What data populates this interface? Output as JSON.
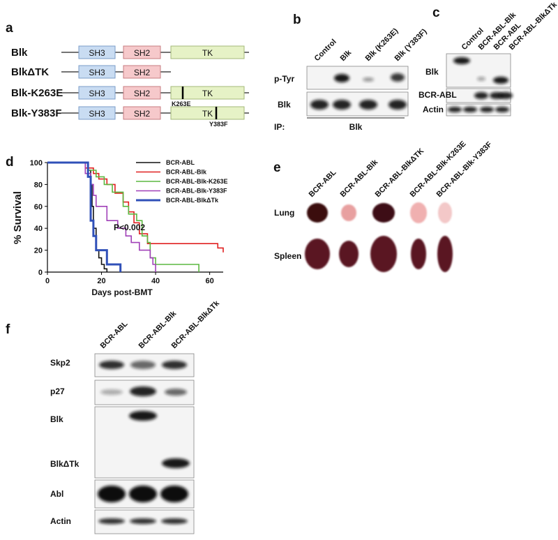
{
  "panel_labels": [
    "a",
    "b",
    "c",
    "d",
    "e",
    "f"
  ],
  "panel_a": {
    "constructs": [
      "Blk",
      "BlkΔTK",
      "Blk-K263E",
      "Blk-Y383F"
    ],
    "domains": [
      "SH3",
      "SH2",
      "TK"
    ],
    "mutations": [
      "K263E",
      "Y383F"
    ]
  },
  "panel_b": {
    "lanes": [
      "Control",
      "Blk",
      "Blk (K263E)",
      "Blk (Y383F)"
    ],
    "rows": [
      "p-Tyr",
      "Blk"
    ],
    "ip_label": "IP:",
    "ip_antibody": "Blk"
  },
  "panel_c": {
    "lanes": [
      "Control",
      "BCR-ABL-Blk",
      "BCR-ABL",
      "BCR-ABL-BlkΔTk"
    ],
    "rows": [
      "Blk",
      "BCR-ABL",
      "Actin"
    ]
  },
  "chart_data": {
    "type": "line",
    "step": true,
    "x_label": "Days post-BMT",
    "y_label": "% Survival",
    "annotation": "P<0.002",
    "xlim": [
      0,
      65
    ],
    "ylim": [
      0,
      100
    ],
    "xticks": [
      0,
      20,
      40,
      60
    ],
    "yticks": [
      0,
      20,
      40,
      60,
      80,
      100
    ],
    "series": [
      {
        "name": "BCR-ABL",
        "color": "#111111",
        "x": [
          0,
          15,
          16,
          16.5,
          17,
          18,
          19,
          20,
          21,
          22
        ],
        "values": [
          100,
          93,
          80,
          60,
          40,
          20,
          13,
          7,
          3,
          0
        ]
      },
      {
        "name": "BCR-ABL-Blk",
        "color": "#e02020",
        "x": [
          0,
          14,
          17,
          19,
          22,
          25,
          28,
          30,
          32,
          34,
          37,
          63,
          65
        ],
        "values": [
          100,
          95,
          90,
          85,
          80,
          72,
          64,
          55,
          45,
          35,
          26,
          22,
          18
        ]
      },
      {
        "name": "BCR-ABL-Blk-K263E",
        "color": "#5cb840",
        "x": [
          0,
          15,
          18,
          21,
          24,
          28,
          30,
          33,
          35,
          37,
          38,
          40,
          56
        ],
        "values": [
          100,
          93,
          87,
          80,
          73,
          60,
          53,
          47,
          33,
          27,
          13,
          7,
          0
        ]
      },
      {
        "name": "BCR-ABL-Blk-Y383F",
        "color": "#a040b8",
        "x": [
          0,
          14,
          16,
          17,
          18,
          22,
          26,
          29,
          31,
          34,
          38,
          39,
          40
        ],
        "values": [
          100,
          90,
          80,
          70,
          60,
          47,
          40,
          33,
          27,
          20,
          13,
          7,
          0
        ]
      },
      {
        "name": "BCR-ABL-BlkΔTk",
        "color": "#3050b8",
        "x": [
          0,
          15,
          16,
          17,
          18,
          22,
          27
        ],
        "values": [
          100,
          87,
          47,
          33,
          20,
          7,
          0
        ]
      }
    ]
  },
  "panel_e": {
    "groups": [
      "BCR-ABL",
      "BCR-ABL-Blk",
      "BCR-ABL-BlkΔTK",
      "BCR-ABL-Blk-K263E",
      "BCR-ABL-Blk-Y383F"
    ],
    "organs": [
      "Lung",
      "Spleen"
    ]
  },
  "panel_f": {
    "lanes": [
      "BCR-ABL",
      "BCR-ABL-Blk",
      "BCR-ABL-BlkΔTk"
    ],
    "rows": [
      "Skp2",
      "p27",
      "Blk",
      "BlkΔTk",
      "Abl",
      "Actin"
    ]
  }
}
